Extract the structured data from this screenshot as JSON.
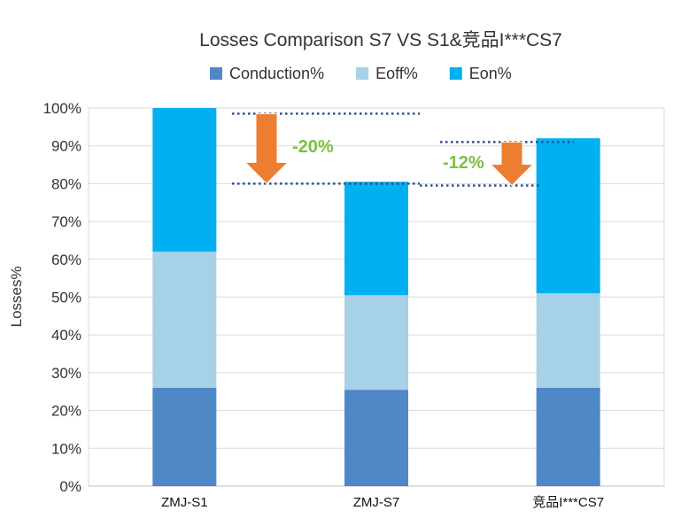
{
  "chart_data": {
    "type": "bar",
    "stacked": true,
    "title": "Losses Comparison S7 VS S1&竞品I***CS7",
    "xlabel": "",
    "ylabel": "Losses%",
    "ylim": [
      0,
      100
    ],
    "yticks": [
      "0%",
      "10%",
      "20%",
      "30%",
      "40%",
      "50%",
      "60%",
      "70%",
      "80%",
      "90%",
      "100%"
    ],
    "categories": [
      "ZMJ-S1",
      "ZMJ-S7",
      "竞品I***CS7"
    ],
    "series": [
      {
        "name": "Conduction%",
        "color": "#4F88C6",
        "values": [
          26,
          25.5,
          26
        ]
      },
      {
        "name": "Eoff%",
        "color": "#A6D1E6",
        "values": [
          36,
          25,
          25
        ]
      },
      {
        "name": "Eon%",
        "color": "#00B0F0",
        "values": [
          38,
          30,
          41
        ]
      }
    ],
    "legend_position": "top",
    "annotations": [
      {
        "text": "-20%",
        "from": 98.5,
        "to": 80,
        "color": "#7AC143",
        "arrow_color": "#ED7D31"
      },
      {
        "text": "-12%",
        "from": 91,
        "to": 79.5,
        "color": "#7AC143",
        "arrow_color": "#ED7D31"
      }
    ]
  }
}
